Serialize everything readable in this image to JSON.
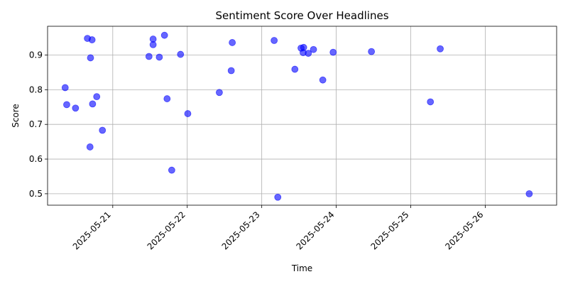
{
  "chart_data": {
    "type": "scatter",
    "title": "Sentiment Score Over Headlines",
    "xlabel": "Time",
    "ylabel": "Score",
    "x_type": "date",
    "xlim": [
      "2025-05-20 03:00",
      "2025-05-26 23:00"
    ],
    "ylim": [
      0.467,
      0.983
    ],
    "x_ticks": [
      "2025-05-21",
      "2025-05-22",
      "2025-05-23",
      "2025-05-24",
      "2025-05-25",
      "2025-05-26"
    ],
    "y_ticks": [
      0.5,
      0.6,
      0.7,
      0.8,
      0.9
    ],
    "grid": true,
    "marker_color": "#0000ff",
    "marker_alpha": 0.6,
    "points": [
      {
        "x": "2025-05-20 08:40",
        "y": 0.806
      },
      {
        "x": "2025-05-20 09:10",
        "y": 0.757
      },
      {
        "x": "2025-05-20 12:00",
        "y": 0.747
      },
      {
        "x": "2025-05-20 15:50",
        "y": 0.948
      },
      {
        "x": "2025-05-20 16:40",
        "y": 0.635
      },
      {
        "x": "2025-05-20 16:50",
        "y": 0.892
      },
      {
        "x": "2025-05-20 17:20",
        "y": 0.944
      },
      {
        "x": "2025-05-20 17:30",
        "y": 0.759
      },
      {
        "x": "2025-05-20 18:50",
        "y": 0.78
      },
      {
        "x": "2025-05-20 20:40",
        "y": 0.683
      },
      {
        "x": "2025-05-21 11:40",
        "y": 0.896
      },
      {
        "x": "2025-05-21 13:00",
        "y": 0.946
      },
      {
        "x": "2025-05-21 13:00",
        "y": 0.93
      },
      {
        "x": "2025-05-21 15:00",
        "y": 0.894
      },
      {
        "x": "2025-05-21 16:40",
        "y": 0.957
      },
      {
        "x": "2025-05-21 17:30",
        "y": 0.774
      },
      {
        "x": "2025-05-21 19:00",
        "y": 0.568
      },
      {
        "x": "2025-05-21 21:50",
        "y": 0.902
      },
      {
        "x": "2025-05-22 00:10",
        "y": 0.731
      },
      {
        "x": "2025-05-22 10:20",
        "y": 0.792
      },
      {
        "x": "2025-05-22 14:10",
        "y": 0.855
      },
      {
        "x": "2025-05-22 14:30",
        "y": 0.936
      },
      {
        "x": "2025-05-23 04:00",
        "y": 0.942
      },
      {
        "x": "2025-05-23 05:10",
        "y": 0.49
      },
      {
        "x": "2025-05-23 10:40",
        "y": 0.859
      },
      {
        "x": "2025-05-23 12:40",
        "y": 0.92
      },
      {
        "x": "2025-05-23 13:30",
        "y": 0.922
      },
      {
        "x": "2025-05-23 13:20",
        "y": 0.907
      },
      {
        "x": "2025-05-23 15:00",
        "y": 0.905
      },
      {
        "x": "2025-05-23 16:40",
        "y": 0.916
      },
      {
        "x": "2025-05-23 19:40",
        "y": 0.828
      },
      {
        "x": "2025-05-23 23:00",
        "y": 0.908
      },
      {
        "x": "2025-05-24 11:20",
        "y": 0.91
      },
      {
        "x": "2025-05-25 06:20",
        "y": 0.765
      },
      {
        "x": "2025-05-25 09:30",
        "y": 0.918
      },
      {
        "x": "2025-05-26 14:10",
        "y": 0.5
      }
    ]
  }
}
